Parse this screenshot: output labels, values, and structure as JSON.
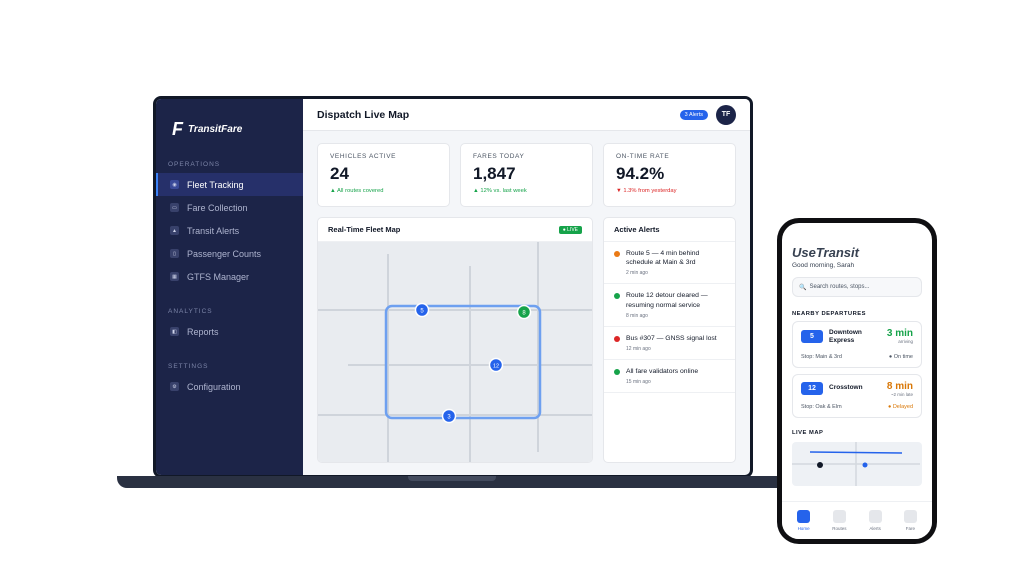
{
  "sidebar": {
    "brand_mark": "F",
    "brand_name": "TransitFare",
    "sections": [
      {
        "label": "OPERATIONS",
        "items": [
          {
            "label": "Fleet Tracking",
            "icon": "eye-icon",
            "active": true
          },
          {
            "label": "Fare Collection",
            "icon": "card-icon"
          },
          {
            "label": "Transit Alerts",
            "icon": "warning-icon"
          },
          {
            "label": "Passenger Counts",
            "icon": "people-icon"
          },
          {
            "label": "GTFS Manager",
            "icon": "grid-icon"
          }
        ]
      },
      {
        "label": "ANALYTICS",
        "items": [
          {
            "label": "Reports",
            "icon": "report-icon"
          }
        ]
      },
      {
        "label": "SETTINGS",
        "items": [
          {
            "label": "Configuration",
            "icon": "gear-icon"
          }
        ]
      }
    ]
  },
  "topbar": {
    "title": "Dispatch Live Map",
    "alerts_pill": "3 Alerts",
    "avatar": "TF"
  },
  "kpis": [
    {
      "label": "VEHICLES ACTIVE",
      "value": "24",
      "trend": "▲ All routes covered",
      "trend_dir": "up"
    },
    {
      "label": "FARES TODAY",
      "value": "1,847",
      "trend": "▲ 12% vs. last week",
      "trend_dir": "up"
    },
    {
      "label": "ON-TIME RATE",
      "value": "94.2%",
      "trend": "▼ 1.3% from yesterday",
      "trend_dir": "down"
    }
  ],
  "map_card": {
    "title": "Real-Time Fleet Map",
    "badge": "● LIVE",
    "vehicles": [
      {
        "label": "5",
        "color": "#2563eb"
      },
      {
        "label": "8",
        "color": "#16a34a"
      },
      {
        "label": "12",
        "color": "#2563eb"
      },
      {
        "label": "3",
        "color": "#2563eb"
      }
    ]
  },
  "alerts_card": {
    "title": "Active Alerts",
    "items": [
      {
        "text": "Route 5 — 4 min behind schedule at Main & 3rd",
        "time": "2 min ago",
        "color": "#ea7a16"
      },
      {
        "text": "Route 12 detour cleared — resuming normal service",
        "time": "8 min ago",
        "color": "#16a34a"
      },
      {
        "text": "Bus #307 — GNSS signal lost",
        "time": "12 min ago",
        "color": "#dc2626"
      },
      {
        "text": "All fare validators online",
        "time": "15 min ago",
        "color": "#16a34a"
      }
    ]
  },
  "phone": {
    "logo": "UseTransit",
    "greeting": "Good morning, Sarah",
    "search_placeholder": "Search routes, stops...",
    "departures_title": "NEARBY DEPARTURES",
    "departures": [
      {
        "route": "5",
        "name": "Downtown Express",
        "eta": "3 min",
        "eta_sub": "arriving",
        "stop": "Stop: Main & 3rd",
        "status": "● On time",
        "eta_color": "green"
      },
      {
        "route": "12",
        "name": "Crosstown",
        "eta": "8 min",
        "eta_sub": "~2 min late",
        "stop": "Stop: Oak & Elm",
        "status": "● Delayed",
        "eta_color": "orange"
      }
    ],
    "live_map_title": "LIVE MAP",
    "tabs": [
      {
        "label": "Home",
        "active": true
      },
      {
        "label": "Routes"
      },
      {
        "label": "Alerts"
      },
      {
        "label": "Fare"
      }
    ]
  }
}
